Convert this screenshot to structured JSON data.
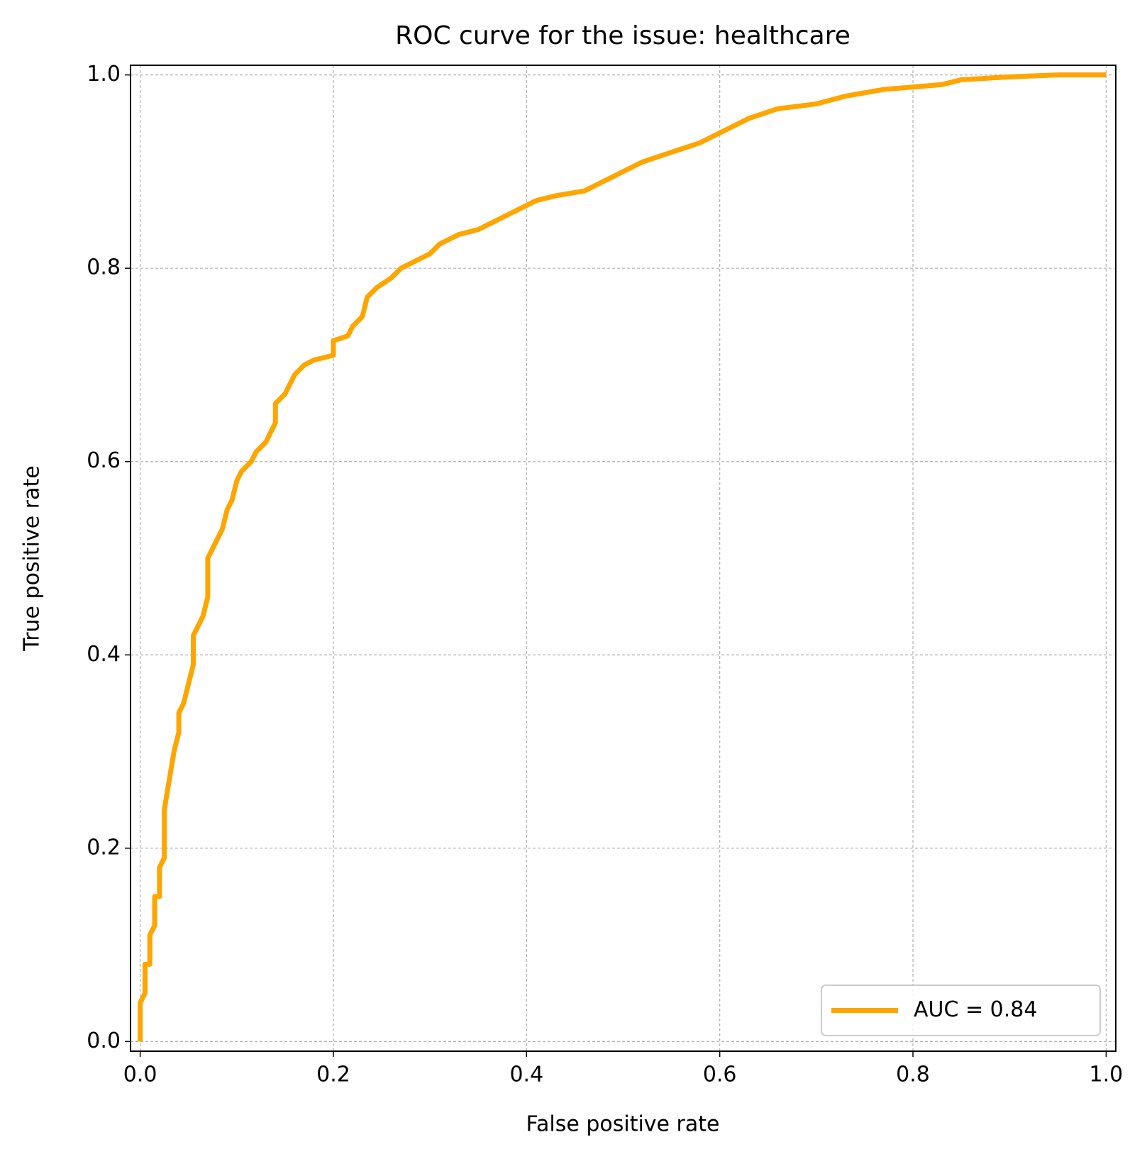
{
  "chart_data": {
    "type": "line",
    "title": "ROC curve for the issue: healthcare",
    "x_label": "False positive rate",
    "y_label": "True positive rate",
    "xlim": [
      -0.01,
      1.01
    ],
    "ylim": [
      -0.01,
      1.01
    ],
    "xticks": [
      {
        "value": 0,
        "label": "0.0"
      },
      0.2,
      0.4,
      0.6,
      0.8,
      {
        "value": 1,
        "label": "1.0"
      }
    ],
    "yticks": [
      {
        "value": 0,
        "label": "0.0"
      },
      0.2,
      0.4,
      0.6,
      0.8,
      {
        "value": 1,
        "label": "1.0"
      }
    ],
    "grid": true,
    "legend": "lower right",
    "x": [
      0,
      0,
      0.005,
      0.005,
      0.01,
      0.01,
      0.015,
      0.015,
      0.02,
      0.02,
      0.025,
      0.025,
      0.03,
      0.035,
      0.04,
      0.04,
      0.045,
      0.05,
      0.055,
      0.055,
      0.06,
      0.065,
      0.07,
      0.07,
      0.075,
      0.08,
      0.085,
      0.09,
      0.095,
      0.1,
      0.105,
      0.115,
      0.12,
      0.13,
      0.14,
      0.14,
      0.15,
      0.16,
      0.17,
      0.18,
      0.2,
      0.2,
      0.215,
      0.22,
      0.23,
      0.235,
      0.245,
      0.26,
      0.27,
      0.28,
      0.3,
      0.31,
      0.33,
      0.35,
      0.37,
      0.39,
      0.4,
      0.41,
      0.43,
      0.46,
      0.48,
      0.5,
      0.52,
      0.55,
      0.58,
      0.6,
      0.63,
      0.66,
      0.7,
      0.73,
      0.77,
      0.83,
      0.85,
      0.9,
      0.95,
      1.0
    ],
    "series": [
      {
        "name": "AUC = 0.84",
        "color": "#ffa500",
        "values": [
          0,
          0.04,
          0.05,
          0.08,
          0.08,
          0.11,
          0.12,
          0.15,
          0.15,
          0.18,
          0.19,
          0.24,
          0.27,
          0.3,
          0.32,
          0.34,
          0.35,
          0.37,
          0.39,
          0.42,
          0.43,
          0.44,
          0.46,
          0.5,
          0.51,
          0.52,
          0.53,
          0.55,
          0.56,
          0.58,
          0.59,
          0.6,
          0.61,
          0.62,
          0.64,
          0.66,
          0.67,
          0.69,
          0.7,
          0.705,
          0.71,
          0.725,
          0.73,
          0.74,
          0.75,
          0.77,
          0.78,
          0.79,
          0.8,
          0.805,
          0.815,
          0.825,
          0.835,
          0.84,
          0.85,
          0.86,
          0.865,
          0.87,
          0.875,
          0.88,
          0.89,
          0.9,
          0.91,
          0.92,
          0.93,
          0.94,
          0.955,
          0.965,
          0.97,
          0.978,
          0.985,
          0.99,
          0.995,
          0.998,
          1.0,
          1.0
        ]
      }
    ]
  }
}
